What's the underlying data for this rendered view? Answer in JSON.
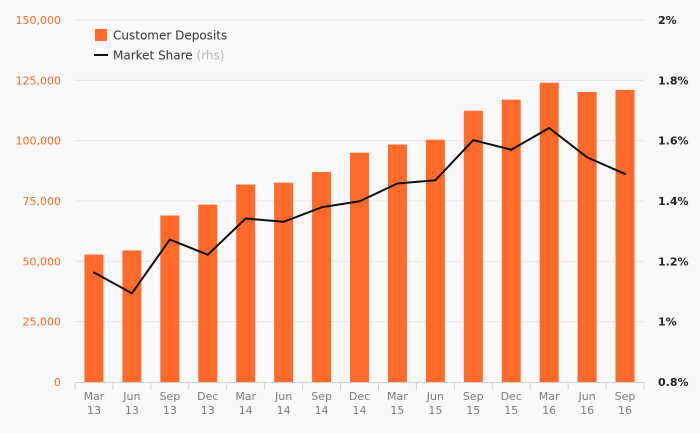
{
  "chart_data": {
    "type": "bar",
    "categories": [
      [
        "Mar",
        "13"
      ],
      [
        "Jun",
        "13"
      ],
      [
        "Sep",
        "13"
      ],
      [
        "Dec",
        "13"
      ],
      [
        "Mar",
        "14"
      ],
      [
        "Jun",
        "14"
      ],
      [
        "Sep",
        "14"
      ],
      [
        "Dec",
        "14"
      ],
      [
        "Mar",
        "15"
      ],
      [
        "Jun",
        "15"
      ],
      [
        "Sep",
        "15"
      ],
      [
        "Dec",
        "15"
      ],
      [
        "Mar",
        "16"
      ],
      [
        "Jun",
        "16"
      ],
      [
        "Sep",
        "16"
      ]
    ],
    "series": [
      {
        "name": "Customer Deposits",
        "type": "bar",
        "axis": "left",
        "color": "#ff6a2b",
        "values": [
          52800,
          54500,
          69000,
          73500,
          81800,
          82600,
          87000,
          95000,
          98400,
          100400,
          112400,
          117000,
          124000,
          120200,
          121000
        ]
      },
      {
        "name": "Market Share",
        "type": "line",
        "axis": "right",
        "color": "#111111",
        "values": [
          1.163,
          1.094,
          1.272,
          1.222,
          1.342,
          1.331,
          1.379,
          1.399,
          1.458,
          1.469,
          1.602,
          1.57,
          1.642,
          1.545,
          1.49
        ]
      }
    ],
    "legend": {
      "placement": "top-left",
      "items": [
        {
          "label": "Customer Deposits",
          "suffix": ""
        },
        {
          "label": "Market Share",
          "suffix": "(rhs)"
        }
      ]
    },
    "left_axis": {
      "min": 0,
      "max": 150000,
      "ticks": [
        0,
        25000,
        50000,
        75000,
        100000,
        125000,
        150000
      ],
      "tick_labels": [
        "0",
        "25,000",
        "50,000",
        "75,000",
        "100,000",
        "125,000",
        "150,000"
      ],
      "color": "#f26b2a"
    },
    "right_axis": {
      "min": 0.8,
      "max": 2.0,
      "ticks": [
        0.8,
        1.0,
        1.2,
        1.4,
        1.6,
        1.8,
        2.0
      ],
      "tick_labels": [
        "0.8%",
        "1%",
        "1.2%",
        "1.4%",
        "1.6%",
        "1.8%",
        "2%"
      ]
    },
    "grid": true
  }
}
